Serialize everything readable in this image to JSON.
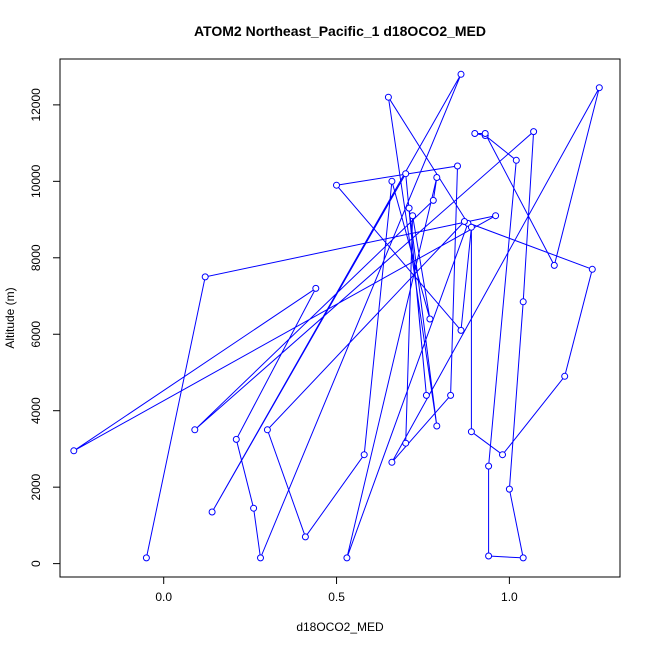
{
  "chart_data": {
    "type": "line",
    "title": "ATOM2 Northeast_Pacific_1 d18OCO2_MED",
    "xlabel": "d18OCO2_MED",
    "ylabel": "Altitude (m)",
    "xlim": [
      -0.3,
      1.32
    ],
    "ylim": [
      -350,
      13200
    ],
    "xticks": [
      0.0,
      0.5,
      1.0
    ],
    "xtick_labels": [
      "0.0",
      "0.5",
      "1.0"
    ],
    "yticks": [
      0,
      2000,
      4000,
      6000,
      8000,
      10000,
      12000
    ],
    "ytick_labels": [
      "0",
      "2000",
      "4000",
      "6000",
      "8000",
      "10000",
      "12000"
    ],
    "grid": false,
    "marker": "open-circle",
    "color": "#0000ff",
    "series": [
      {
        "x": [
          -0.05,
          0.12,
          0.96,
          -0.26,
          0.44,
          0.21,
          0.26,
          0.28,
          0.86,
          0.14,
          0.7,
          0.76,
          0.71,
          0.79,
          0.65,
          0.88,
          0.53,
          0.79,
          0.78,
          0.09,
          1.07,
          1.04,
          1.0,
          1.04,
          0.94,
          0.94,
          1.02,
          0.93,
          0.9,
          0.93,
          1.13,
          1.26,
          0.66,
          0.83,
          0.85,
          0.5,
          0.86,
          0.89,
          0.89,
          0.98,
          1.16,
          1.24,
          0.87,
          0.3,
          0.41,
          0.58,
          0.66,
          0.77,
          0.72,
          0.7
        ],
        "y": [
          150,
          7500,
          9100,
          2950,
          7200,
          3250,
          1450,
          150,
          12800,
          1350,
          10200,
          4400,
          9300,
          3600,
          12200,
          8900,
          150,
          10100,
          9500,
          3500,
          11300,
          6850,
          1950,
          150,
          200,
          2550,
          10550,
          11200,
          11250,
          11250,
          7800,
          12450,
          2650,
          4400,
          10400,
          9900,
          6100,
          8800,
          3450,
          2850,
          4900,
          7700,
          8950,
          3500,
          700,
          2850,
          10000,
          6400,
          9100,
          3150
        ]
      }
    ]
  }
}
